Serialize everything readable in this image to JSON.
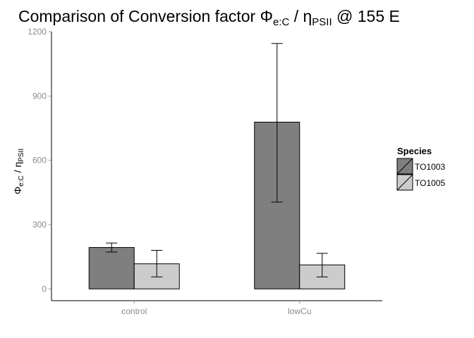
{
  "chart_data": {
    "type": "bar",
    "title": {
      "prefix": "Comparison of Conversion factor ",
      "phi": "Φ",
      "phi_sub": "e:C",
      "slash": " / ",
      "eta": "η",
      "eta_sub": "PSII",
      "suffix": " @ 155 E"
    },
    "ylabel": {
      "phi": "Φ",
      "phi_sub": "e:C",
      "slash": " / ",
      "eta": "η",
      "eta_sub": "PSII"
    },
    "xlabel": "",
    "categories": [
      "control",
      "lowCu"
    ],
    "ylim": [
      -55,
      1200
    ],
    "yticks": [
      0,
      300,
      600,
      900,
      1200
    ],
    "grid": false,
    "legend": {
      "title": "Species",
      "position": "right"
    },
    "series": [
      {
        "name": "TO1003",
        "color": "#7f7f7f",
        "values": [
          193,
          778
        ],
        "err_low": [
          172,
          405
        ],
        "err_high": [
          214,
          1145
        ]
      },
      {
        "name": "TO1005",
        "color": "#cccccc",
        "values": [
          117,
          112
        ],
        "err_low": [
          56,
          56
        ],
        "err_high": [
          180,
          166
        ]
      }
    ]
  }
}
